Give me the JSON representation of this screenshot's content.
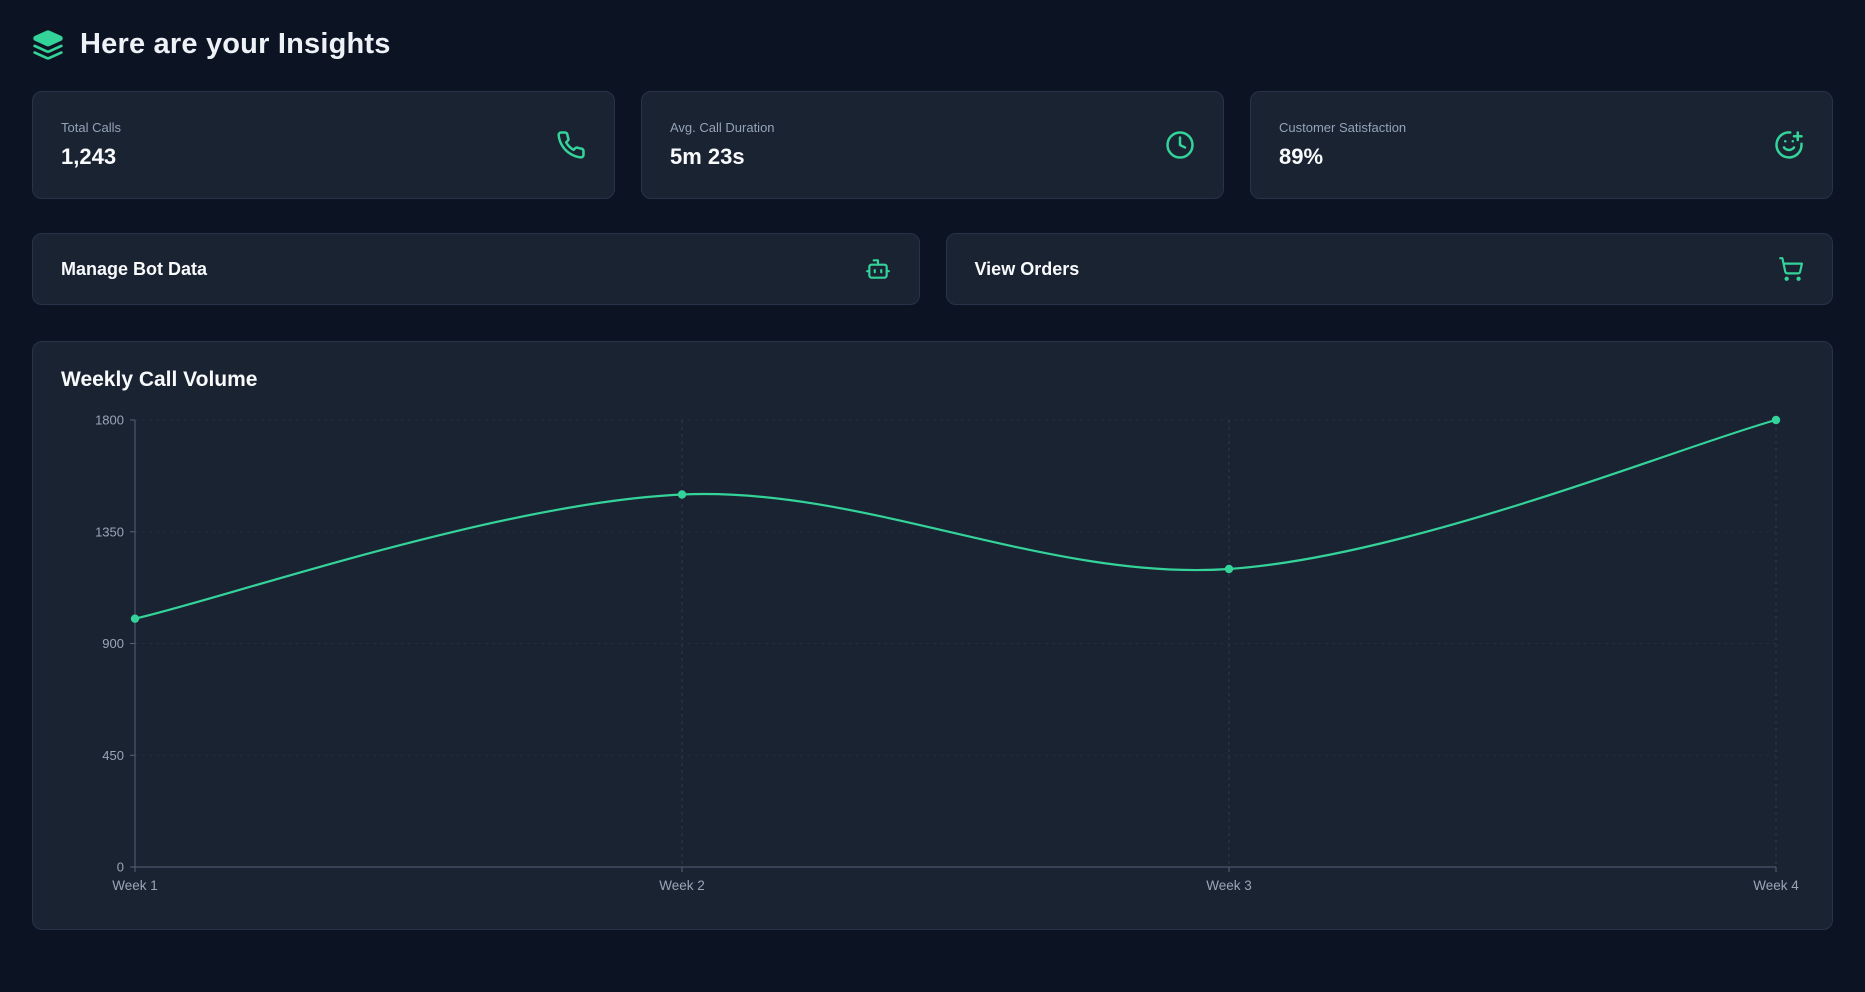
{
  "header": {
    "title": "Here are your Insights",
    "icon": "layers-icon"
  },
  "stats": [
    {
      "label": "Total Calls",
      "value": "1,243",
      "icon": "phone-icon"
    },
    {
      "label": "Avg. Call Duration",
      "value": "5m 23s",
      "icon": "clock-icon"
    },
    {
      "label": "Customer Satisfaction",
      "value": "89%",
      "icon": "smile-plus-icon"
    }
  ],
  "actions": [
    {
      "label": "Manage Bot Data",
      "icon": "bot-icon"
    },
    {
      "label": "View Orders",
      "icon": "shopping-cart-icon"
    }
  ],
  "chart_data": {
    "type": "line",
    "title": "Weekly Call Volume",
    "categories": [
      "Week 1",
      "Week 2",
      "Week 3",
      "Week 4"
    ],
    "values": [
      1000,
      1500,
      1200,
      1800
    ],
    "xlabel": "",
    "ylabel": "",
    "ylim": [
      0,
      1800
    ],
    "yticks": [
      0,
      450,
      900,
      1350,
      1800
    ],
    "grid": true,
    "legend": "none",
    "line_color": "#34d399",
    "point_color": "#34d399"
  },
  "colors": {
    "background": "#0c1424",
    "card": "#1a2332",
    "card_border": "#273349",
    "accent": "#34d399",
    "muted_text": "#94a3b8",
    "axis": "#55617a"
  }
}
